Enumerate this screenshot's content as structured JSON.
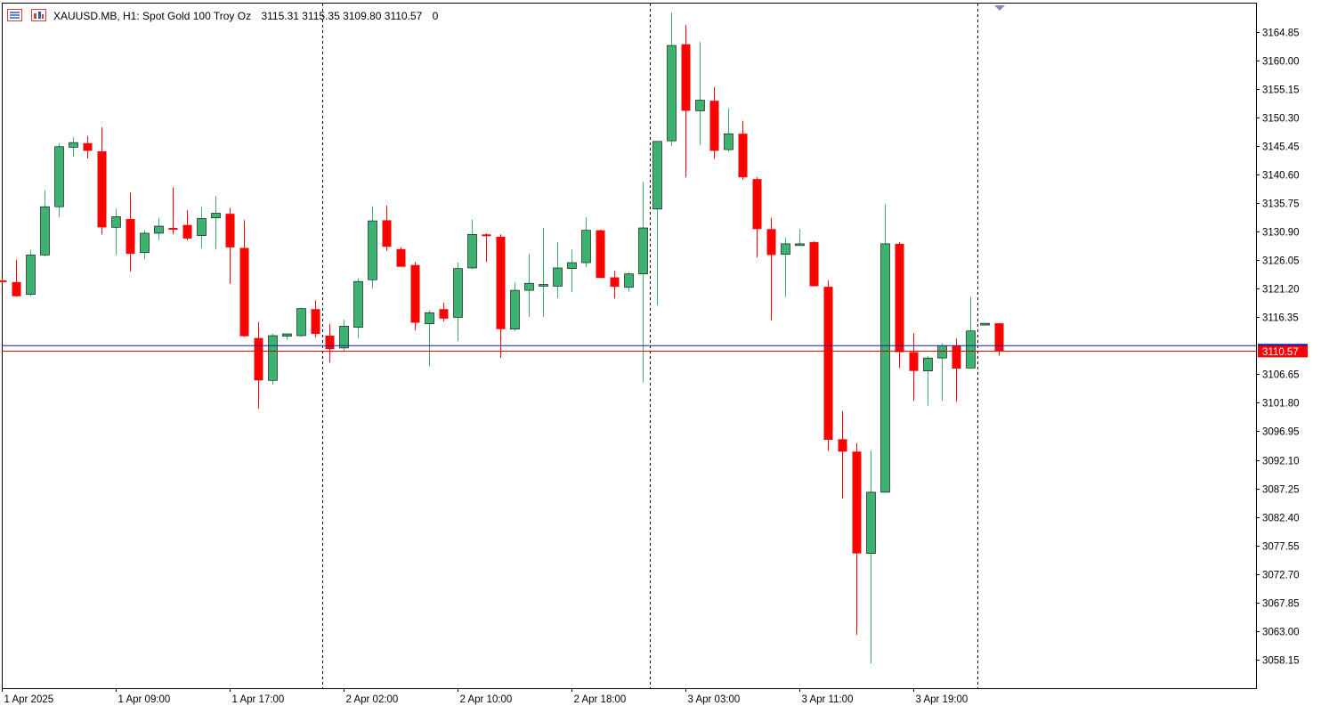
{
  "header": {
    "symbol_line": "XAUUSD.MB, H1:  Spot Gold 100 Troy Oz",
    "ohlc": "3115.31 3115.35 3109.80 3110.57",
    "volume": "0",
    "icon_list": "chart-list-icon",
    "icon_chart": "chart-window-icon"
  },
  "colors": {
    "bull": "#3cb371",
    "bear": "#ff0000",
    "bid_line": "#cc0000",
    "ask_line": "#1a1aa8",
    "price_tag_bg": "#ff0000",
    "price_tag_text": "#ffffff"
  },
  "chart_data": {
    "type": "candlestick",
    "timeframe": "H1",
    "ylim": [
      3053.2,
      3169.5
    ],
    "y_ticks": [
      "3164.85",
      "3160.00",
      "3155.15",
      "3150.30",
      "3145.45",
      "3140.60",
      "3135.75",
      "3130.90",
      "3126.05",
      "3121.20",
      "3116.35",
      "3106.65",
      "3101.80",
      "3096.95",
      "3092.10",
      "3087.25",
      "3082.40",
      "3077.55",
      "3072.70",
      "3067.85",
      "3063.00",
      "3058.15"
    ],
    "current_price": "3110.57",
    "bid": 3110.57,
    "ask": 3111.5,
    "x_labels": [
      {
        "index": 0,
        "label": "1 Apr 2025"
      },
      {
        "index": 8,
        "label": "1 Apr 09:00"
      },
      {
        "index": 16,
        "label": "1 Apr 17:00"
      },
      {
        "index": 24,
        "label": "2 Apr 02:00"
      },
      {
        "index": 32,
        "label": "2 Apr 10:00"
      },
      {
        "index": 40,
        "label": "2 Apr 18:00"
      },
      {
        "index": 48,
        "label": "3 Apr 03:00"
      },
      {
        "index": 56,
        "label": "3 Apr 11:00"
      },
      {
        "index": 64,
        "label": "3 Apr 19:00"
      }
    ],
    "day_separators_after_index": [
      22.5,
      45.5,
      68.5
    ],
    "candles": [
      {
        "o": 3122.6,
        "h": 3122.9,
        "l": 3122.2,
        "c": 3122.4
      },
      {
        "o": 3122.3,
        "h": 3126.1,
        "l": 3119.8,
        "c": 3119.9
      },
      {
        "o": 3120.2,
        "h": 3127.8,
        "l": 3119.9,
        "c": 3126.9
      },
      {
        "o": 3126.9,
        "h": 3137.9,
        "l": 3126.6,
        "c": 3135.1
      },
      {
        "o": 3135.1,
        "h": 3145.9,
        "l": 3133.4,
        "c": 3145.3
      },
      {
        "o": 3145.2,
        "h": 3146.9,
        "l": 3143.6,
        "c": 3146.0
      },
      {
        "o": 3145.9,
        "h": 3147.1,
        "l": 3143.3,
        "c": 3144.6
      },
      {
        "o": 3144.5,
        "h": 3148.6,
        "l": 3130.4,
        "c": 3131.6
      },
      {
        "o": 3131.6,
        "h": 3134.8,
        "l": 3126.9,
        "c": 3133.4
      },
      {
        "o": 3133.0,
        "h": 3137.5,
        "l": 3124.1,
        "c": 3127.1
      },
      {
        "o": 3127.3,
        "h": 3131.1,
        "l": 3126.2,
        "c": 3130.6
      },
      {
        "o": 3130.6,
        "h": 3133.2,
        "l": 3129.4,
        "c": 3131.8
      },
      {
        "o": 3131.5,
        "h": 3138.4,
        "l": 3130.4,
        "c": 3131.4
      },
      {
        "o": 3132.0,
        "h": 3134.5,
        "l": 3129.4,
        "c": 3129.7
      },
      {
        "o": 3130.2,
        "h": 3135.1,
        "l": 3128.0,
        "c": 3133.1
      },
      {
        "o": 3133.2,
        "h": 3136.9,
        "l": 3127.8,
        "c": 3134.0
      },
      {
        "o": 3133.9,
        "h": 3134.9,
        "l": 3122.0,
        "c": 3128.2
      },
      {
        "o": 3128.1,
        "h": 3132.8,
        "l": 3113.0,
        "c": 3113.1
      },
      {
        "o": 3112.8,
        "h": 3115.5,
        "l": 3100.8,
        "c": 3105.6
      },
      {
        "o": 3105.6,
        "h": 3113.5,
        "l": 3104.9,
        "c": 3113.2
      },
      {
        "o": 3113.1,
        "h": 3113.6,
        "l": 3112.5,
        "c": 3113.5
      },
      {
        "o": 3113.2,
        "h": 3117.9,
        "l": 3113.0,
        "c": 3117.8
      },
      {
        "o": 3117.7,
        "h": 3119.2,
        "l": 3112.9,
        "c": 3113.5
      },
      {
        "o": 3113.2,
        "h": 3115.2,
        "l": 3108.6,
        "c": 3110.9
      },
      {
        "o": 3111.1,
        "h": 3115.9,
        "l": 3110.6,
        "c": 3114.8
      },
      {
        "o": 3114.6,
        "h": 3122.9,
        "l": 3112.7,
        "c": 3122.4
      },
      {
        "o": 3122.7,
        "h": 3135.2,
        "l": 3121.3,
        "c": 3132.7
      },
      {
        "o": 3132.8,
        "h": 3135.3,
        "l": 3127.6,
        "c": 3128.3
      },
      {
        "o": 3127.9,
        "h": 3128.2,
        "l": 3124.9,
        "c": 3124.9
      },
      {
        "o": 3125.2,
        "h": 3125.7,
        "l": 3114.1,
        "c": 3115.4
      },
      {
        "o": 3115.2,
        "h": 3117.5,
        "l": 3108.0,
        "c": 3117.1
      },
      {
        "o": 3117.7,
        "h": 3118.8,
        "l": 3115.6,
        "c": 3116.1
      },
      {
        "o": 3116.3,
        "h": 3125.6,
        "l": 3112.3,
        "c": 3124.6
      },
      {
        "o": 3124.7,
        "h": 3132.9,
        "l": 3124.5,
        "c": 3130.4
      },
      {
        "o": 3130.4,
        "h": 3130.6,
        "l": 3125.7,
        "c": 3130.1
      },
      {
        "o": 3130.0,
        "h": 3130.4,
        "l": 3109.4,
        "c": 3114.3
      },
      {
        "o": 3114.3,
        "h": 3122.2,
        "l": 3114.0,
        "c": 3120.9
      },
      {
        "o": 3120.9,
        "h": 3127.1,
        "l": 3116.4,
        "c": 3122.1
      },
      {
        "o": 3121.9,
        "h": 3131.5,
        "l": 3116.4,
        "c": 3121.9
      },
      {
        "o": 3121.6,
        "h": 3129.1,
        "l": 3119.6,
        "c": 3124.7
      },
      {
        "o": 3124.6,
        "h": 3127.8,
        "l": 3120.6,
        "c": 3125.6
      },
      {
        "o": 3125.6,
        "h": 3133.3,
        "l": 3124.8,
        "c": 3131.1
      },
      {
        "o": 3131.1,
        "h": 3131.2,
        "l": 3123.0,
        "c": 3123.0
      },
      {
        "o": 3123.1,
        "h": 3124.2,
        "l": 3119.5,
        "c": 3121.5
      },
      {
        "o": 3121.4,
        "h": 3124.0,
        "l": 3120.7,
        "c": 3123.7
      },
      {
        "o": 3123.7,
        "h": 3139.3,
        "l": 3105.2,
        "c": 3131.5
      },
      {
        "o": 3134.7,
        "h": 3146.0,
        "l": 3118.3,
        "c": 3146.2
      },
      {
        "o": 3146.3,
        "h": 3168.1,
        "l": 3145.4,
        "c": 3162.5
      },
      {
        "o": 3162.7,
        "h": 3166.0,
        "l": 3140.1,
        "c": 3151.4
      },
      {
        "o": 3151.4,
        "h": 3163.1,
        "l": 3145.6,
        "c": 3153.2
      },
      {
        "o": 3153.1,
        "h": 3155.4,
        "l": 3143.2,
        "c": 3144.6
      },
      {
        "o": 3144.8,
        "h": 3151.8,
        "l": 3144.4,
        "c": 3147.5
      },
      {
        "o": 3147.5,
        "h": 3149.7,
        "l": 3139.7,
        "c": 3140.1
      },
      {
        "o": 3139.8,
        "h": 3140.1,
        "l": 3126.5,
        "c": 3131.3
      },
      {
        "o": 3131.3,
        "h": 3133.2,
        "l": 3115.8,
        "c": 3126.9
      },
      {
        "o": 3127.0,
        "h": 3129.8,
        "l": 3119.8,
        "c": 3128.8
      },
      {
        "o": 3128.8,
        "h": 3131.3,
        "l": 3128.5,
        "c": 3128.8
      },
      {
        "o": 3129.1,
        "h": 3129.2,
        "l": 3121.6,
        "c": 3121.6
      },
      {
        "o": 3121.5,
        "h": 3122.6,
        "l": 3093.6,
        "c": 3095.5
      },
      {
        "o": 3095.6,
        "h": 3100.4,
        "l": 3085.5,
        "c": 3093.5
      },
      {
        "o": 3093.5,
        "h": 3094.9,
        "l": 3062.4,
        "c": 3076.2
      },
      {
        "o": 3076.2,
        "h": 3093.7,
        "l": 3057.5,
        "c": 3086.6
      },
      {
        "o": 3086.6,
        "h": 3135.5,
        "l": 3086.5,
        "c": 3128.8
      },
      {
        "o": 3128.8,
        "h": 3129.1,
        "l": 3107.7,
        "c": 3110.4
      },
      {
        "o": 3110.4,
        "h": 3113.6,
        "l": 3102.1,
        "c": 3107.2
      },
      {
        "o": 3107.2,
        "h": 3109.7,
        "l": 3101.3,
        "c": 3109.4
      },
      {
        "o": 3109.4,
        "h": 3111.9,
        "l": 3102.1,
        "c": 3111.5
      },
      {
        "o": 3111.5,
        "h": 3112.7,
        "l": 3102.0,
        "c": 3107.6
      },
      {
        "o": 3107.7,
        "h": 3119.8,
        "l": 3107.6,
        "c": 3114.0
      },
      {
        "o": 3115.3,
        "h": 3115.4,
        "l": 3115.3,
        "c": 3115.3
      },
      {
        "o": 3115.3,
        "h": 3115.35,
        "l": 3109.8,
        "c": 3110.57
      }
    ]
  }
}
